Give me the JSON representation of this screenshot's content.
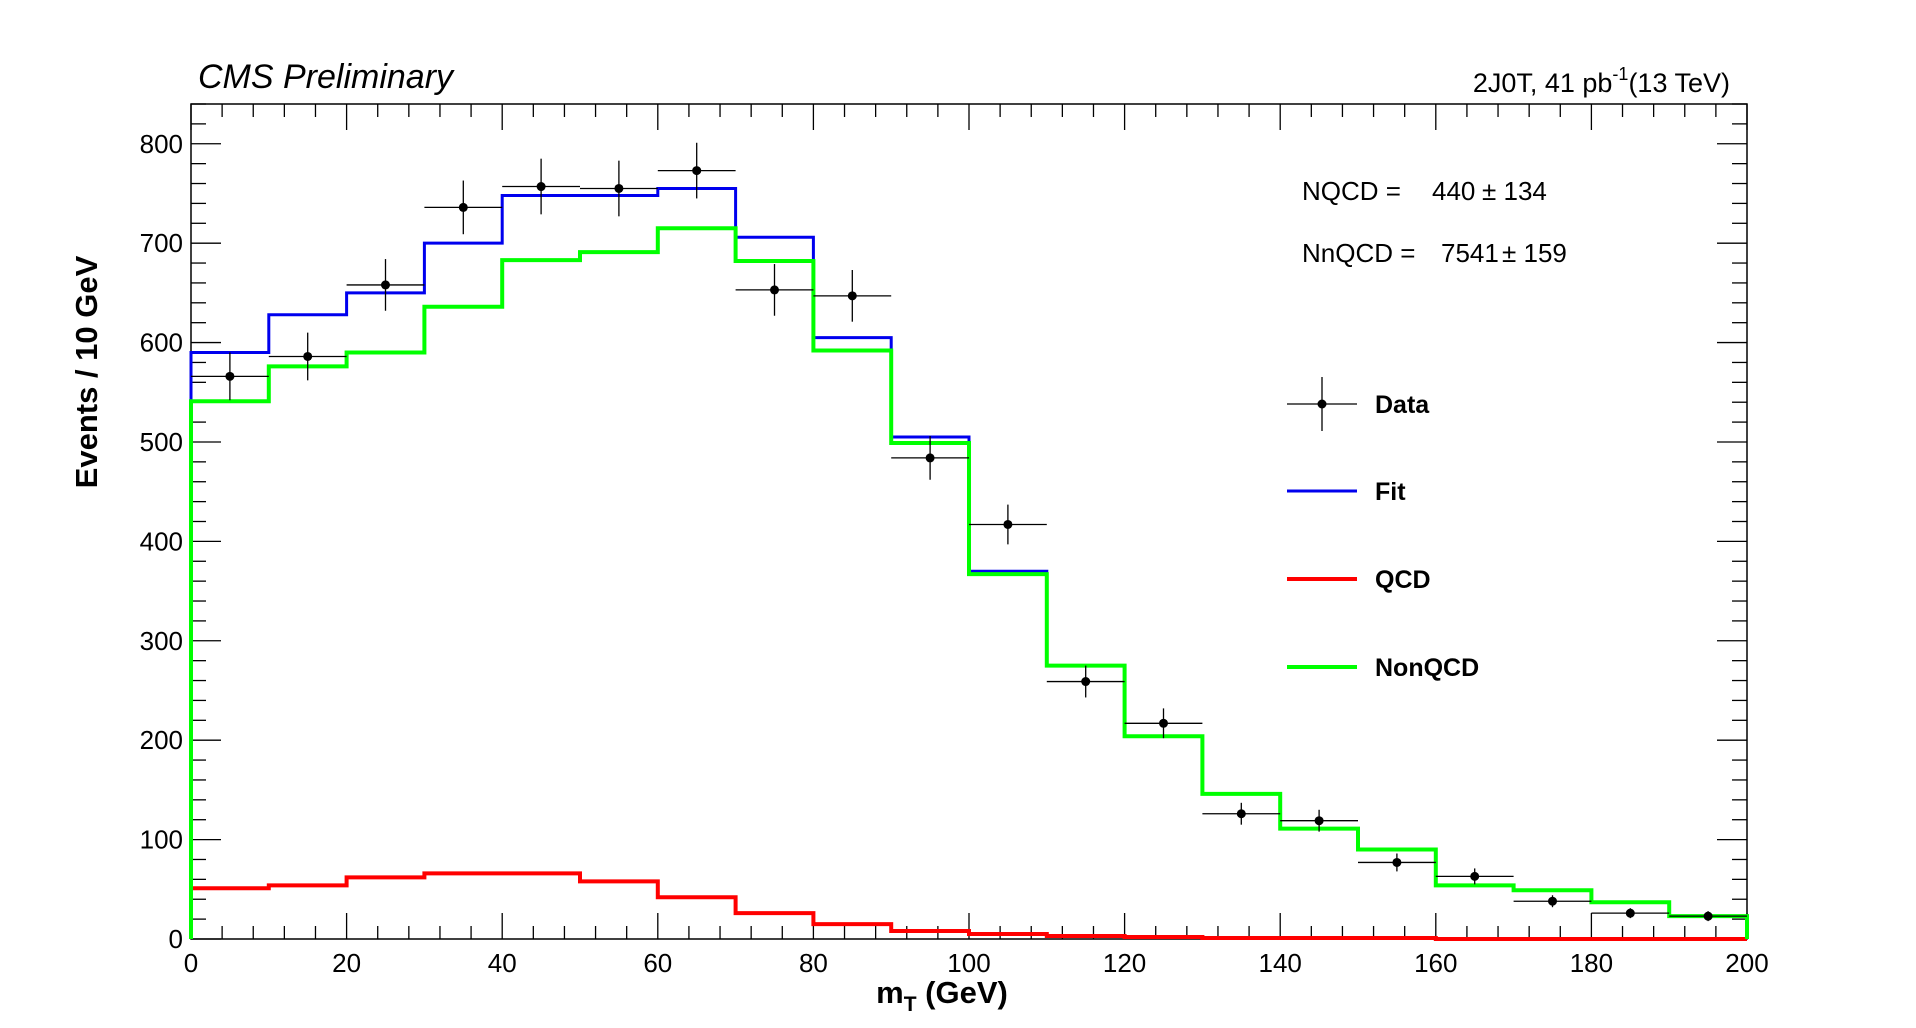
{
  "header": {
    "experiment_label": "CMS Preliminary",
    "region_label": "2J0T, 41 pb",
    "lumi_exponent": "-1",
    "energy_label": "(13 TeV)"
  },
  "fit_results": {
    "nqcd_label": "NQCD =",
    "nqcd_value": "440",
    "nqcd_error": "± 134",
    "nnqcd_label": "NnQCD =",
    "nnqcd_value": "7541",
    "nnqcd_error": "± 159"
  },
  "colors": {
    "data": "#000000",
    "fit": "#0000ee",
    "qcd": "#ff0000",
    "nonqcd": "#00ff00"
  },
  "chart_data": {
    "type": "line",
    "xlabel": "m",
    "xlabel_sub": "T",
    "xlabel_unit": " (GeV)",
    "ylabel": "Events /  10 GeV",
    "xlim": [
      0,
      200
    ],
    "ylim": [
      0,
      840
    ],
    "x_ticks": [
      0,
      20,
      40,
      60,
      80,
      100,
      120,
      140,
      160,
      180,
      200
    ],
    "y_ticks": [
      0,
      100,
      200,
      300,
      400,
      500,
      600,
      700,
      800
    ],
    "bin_edges": [
      0,
      10,
      20,
      30,
      40,
      50,
      60,
      70,
      80,
      90,
      100,
      110,
      120,
      130,
      140,
      150,
      160,
      170,
      180,
      190,
      200
    ],
    "legend_position": "right",
    "series": [
      {
        "name": "Data",
        "style": "points",
        "x": [
          5,
          15,
          25,
          35,
          45,
          55,
          65,
          75,
          85,
          95,
          105,
          115,
          125,
          135,
          145,
          155,
          165,
          175,
          185,
          195
        ],
        "values": [
          566,
          586,
          658,
          736,
          757,
          755,
          773,
          653,
          647,
          484,
          417,
          259,
          217,
          126,
          119,
          77,
          63,
          38,
          26,
          23
        ],
        "errors": [
          24,
          24,
          26,
          27,
          28,
          28,
          28,
          26,
          26,
          22,
          20,
          16,
          15,
          11,
          11,
          9,
          8,
          6,
          5,
          5
        ]
      },
      {
        "name": "Fit",
        "style": "step",
        "values": [
          590,
          628,
          650,
          700,
          748,
          748,
          755,
          706,
          605,
          505,
          370,
          275,
          204,
          146,
          111,
          90,
          54,
          49,
          37,
          23
        ]
      },
      {
        "name": "QCD",
        "style": "step",
        "values": [
          51,
          54,
          62,
          66,
          66,
          58,
          42,
          26,
          15,
          8,
          5,
          3,
          2,
          1,
          1,
          1,
          0,
          0,
          0,
          0
        ]
      },
      {
        "name": "NonQCD",
        "style": "step",
        "values": [
          541,
          576,
          590,
          636,
          683,
          691,
          715,
          682,
          592,
          499,
          367,
          275,
          204,
          146,
          111,
          90,
          54,
          49,
          37,
          23
        ]
      }
    ]
  }
}
